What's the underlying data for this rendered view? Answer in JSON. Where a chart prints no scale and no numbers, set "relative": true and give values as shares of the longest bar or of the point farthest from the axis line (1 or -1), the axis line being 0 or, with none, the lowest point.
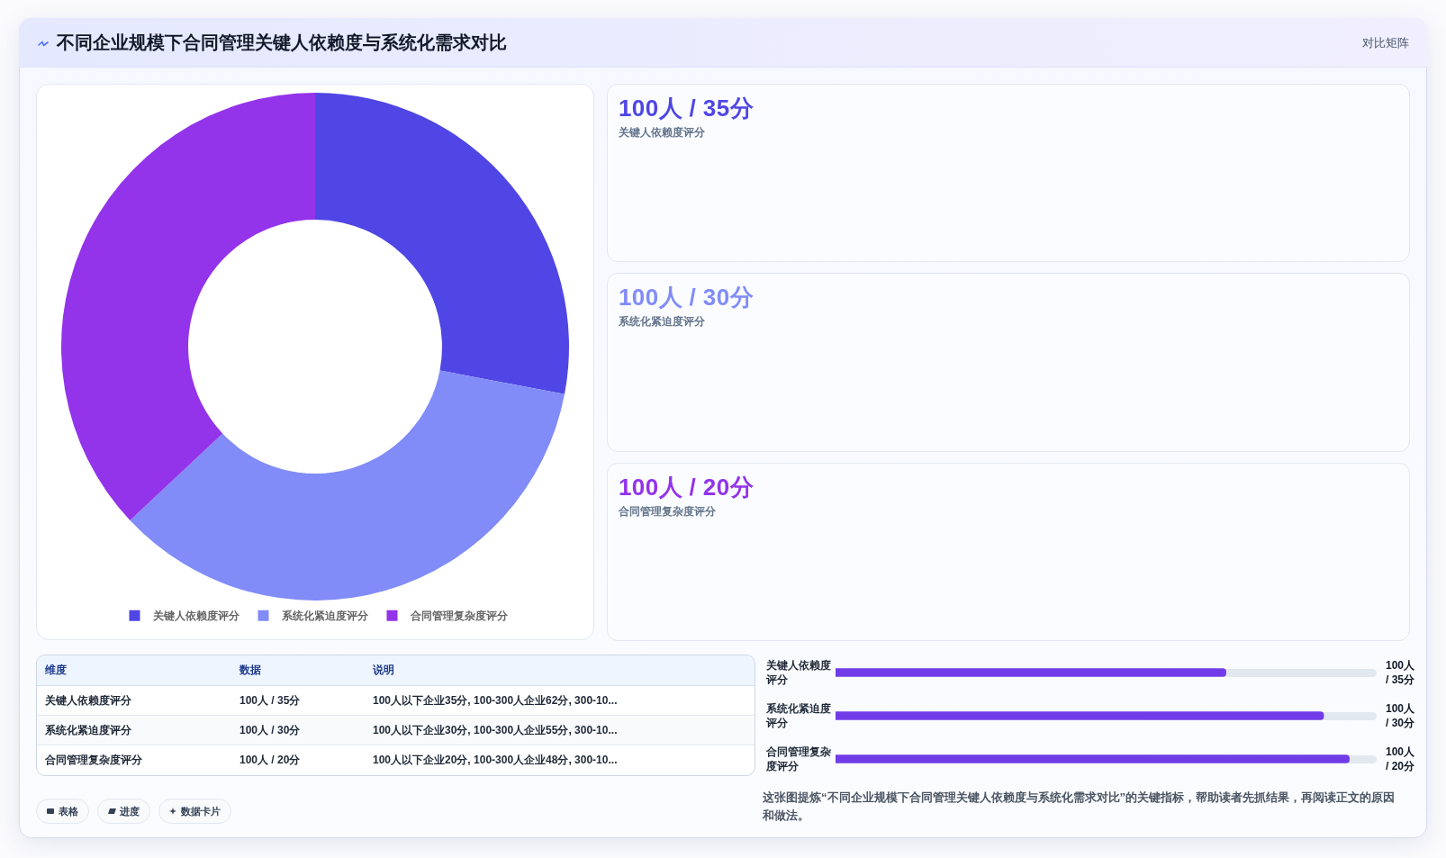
{
  "chart_data": [
    {
      "type": "other",
      "title": "不同企业规模下合同管理关键人依赖度与系统化需求对比",
      "subtitle": "对比矩阵"
    },
    {
      "type": "donut",
      "categories": [
        "关键人依赖度评分",
        "系统化紧迫度评分",
        "合同管理复杂度评分"
      ],
      "values": [
        28,
        35,
        37
      ],
      "colors": [
        "#4f46e5",
        "#818cf8",
        "#9333ea"
      ],
      "legend": "bottom"
    },
    {
      "type": "other",
      "annotations": [
        "100人 / 35分",
        "关键人依赖度评分",
        "100人 / 30分",
        "系统化紧迫度评分",
        "100人 / 20分",
        "合同管理复杂度评分"
      ],
      "colors": [
        "#4f46e5",
        "#818cf8",
        "#9333ea"
      ]
    },
    {
      "type": "other",
      "categories": [
        "维度",
        "数据",
        "说明"
      ],
      "annotations": [
        "关键人依赖度评分",
        "100人 / 35分",
        "100人以下企业35分, 100-300人企业62分, 300-10...",
        "系统化紧迫度评分",
        "100人 / 30分",
        "100人以下企业30分, 100-300人企业55分, 300-10...",
        "合同管理复杂度评分",
        "100人 / 20分",
        "100人以下企业20分, 100-300人企业48分, 300-10..."
      ]
    },
    {
      "type": "bar",
      "orientation": "horizontal",
      "relative": true,
      "categories": [
        "关键人依赖度评分",
        "系统化紧迫度评分",
        "合同管理复杂度评分"
      ],
      "values": [
        0.76,
        0.95,
        1
      ],
      "color": "#713ce7",
      "annotations": [
        "100人 / 35分",
        "100人 / 30分",
        "100人 / 20分",
        "这张图提炼“不同企业规模下合同管理关键人依赖度与系统化需求对比”的关键指标，帮助读者先抓结果，再阅读正文的原因和做法。"
      ]
    },
    {
      "type": "other",
      "annotations": [
        "表格",
        "进度",
        "数据卡片"
      ]
    }
  ]
}
